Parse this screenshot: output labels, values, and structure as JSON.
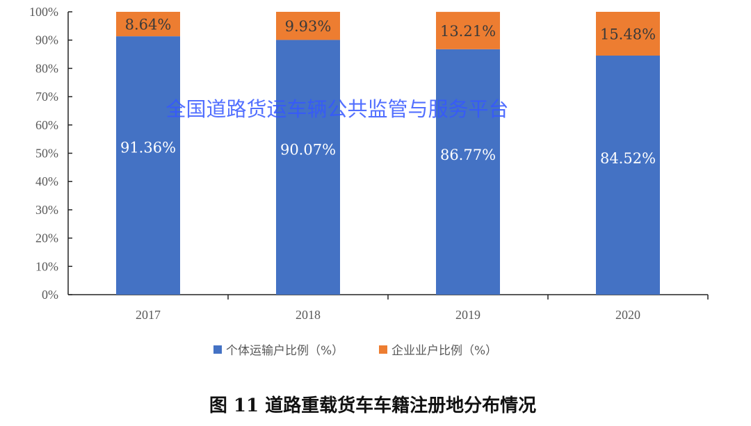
{
  "chart_data": {
    "type": "bar",
    "stacked": true,
    "categories": [
      "2017",
      "2018",
      "2019",
      "2020"
    ],
    "series": [
      {
        "name": "个体运输户比例（%）",
        "values": [
          91.36,
          90.07,
          86.77,
          84.52
        ],
        "labels": [
          "91.36%",
          "90.07%",
          "86.77%",
          "84.52%"
        ],
        "color": "#4472c4"
      },
      {
        "name": "企业业户比例（%）",
        "values": [
          8.64,
          9.93,
          13.21,
          15.48
        ],
        "labels": [
          "8.64%",
          "9.93%",
          "13.21%",
          "15.48%"
        ],
        "color": "#ed7d31"
      }
    ],
    "ylim": [
      0,
      100
    ],
    "yticks": [
      "0%",
      "10%",
      "20%",
      "30%",
      "40%",
      "50%",
      "60%",
      "70%",
      "80%",
      "90%",
      "100%"
    ],
    "grid": false,
    "legend": "bottom",
    "title": "图 11 道路重载货车车籍注册地分布情况",
    "watermark": "全国道路货运车辆公共监管与服务平台"
  }
}
